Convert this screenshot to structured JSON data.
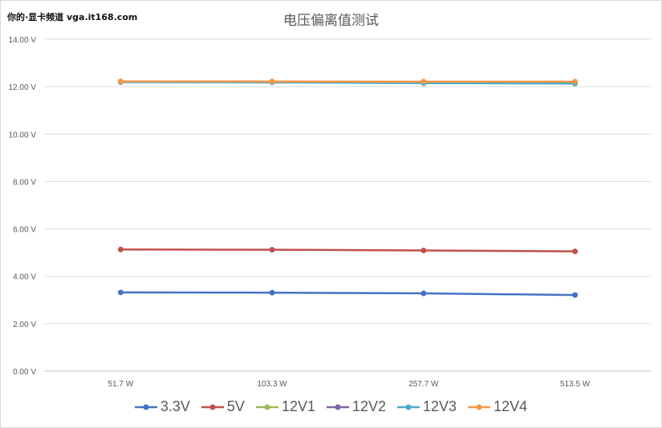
{
  "header": {
    "watermark": "你的·显卡频道 vga.it168.com",
    "title": "电压偏离值测试"
  },
  "chart_data": {
    "type": "line",
    "title": "电压偏离值测试",
    "categories": [
      "51.7 W",
      "103.3 W",
      "257.7 W",
      "513.5 W"
    ],
    "ylim": [
      0,
      14
    ],
    "yticks": [
      "0.00 V",
      "2.00 V",
      "4.00 V",
      "6.00 V",
      "8.00 V",
      "10.00 V",
      "12.00 V",
      "14.00 V"
    ],
    "grid": true,
    "legend_position": "bottom",
    "series": [
      {
        "name": "3.3V",
        "color": "#4472C4",
        "values": [
          3.32,
          3.31,
          3.28,
          3.21
        ]
      },
      {
        "name": "5V",
        "color": "#C0504D",
        "values": [
          5.13,
          5.12,
          5.09,
          5.05
        ]
      },
      {
        "name": "12V1",
        "color": "#9BBB59",
        "values": [
          12.2,
          12.2,
          12.17,
          12.16
        ]
      },
      {
        "name": "12V2",
        "color": "#8064A2",
        "values": [
          12.2,
          12.2,
          12.17,
          12.16
        ]
      },
      {
        "name": "12V3",
        "color": "#4BACC6",
        "values": [
          12.19,
          12.18,
          12.15,
          12.13
        ]
      },
      {
        "name": "12V4",
        "color": "#F79646",
        "values": [
          12.22,
          12.22,
          12.21,
          12.21
        ]
      }
    ]
  }
}
